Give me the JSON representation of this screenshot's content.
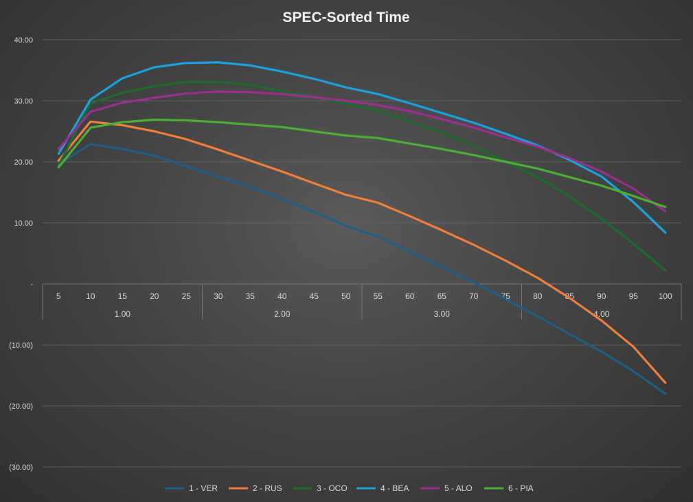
{
  "chart_data": {
    "type": "line",
    "title": "SPEC-Sorted Time",
    "x": [
      5,
      10,
      15,
      20,
      25,
      30,
      35,
      40,
      45,
      50,
      55,
      60,
      65,
      70,
      75,
      80,
      85,
      90,
      95,
      100
    ],
    "group_labels": [
      "1.00",
      "2.00",
      "3.00",
      "4.00"
    ],
    "ylim": [
      -30,
      40
    ],
    "yticks": [
      40,
      30,
      20,
      10,
      0,
      -10,
      -20,
      -30
    ],
    "ytick_labels": [
      "40.00",
      "30.00",
      "20.00",
      "10.00",
      "-",
      "(10.00)",
      "(20.00)",
      "(30.00)"
    ],
    "grid": true,
    "legend_position": "bottom",
    "series": [
      {
        "name": "1 - VER",
        "color": "#1f5f85",
        "values": [
          19.6,
          22.9,
          22.1,
          21.0,
          19.3,
          17.6,
          15.9,
          13.9,
          11.8,
          9.5,
          7.8,
          5.3,
          2.8,
          0.3,
          -2.5,
          -5.3,
          -8.2,
          -11.1,
          -14.3,
          -18.0
        ]
      },
      {
        "name": "2 - RUS",
        "color": "#f07f3c",
        "values": [
          20.2,
          26.6,
          26.0,
          25.0,
          23.7,
          22.0,
          20.2,
          18.4,
          16.5,
          14.6,
          13.3,
          11.1,
          8.8,
          6.4,
          3.8,
          1.0,
          -2.3,
          -6.0,
          -10.3,
          -16.2
        ]
      },
      {
        "name": "3 - OCO",
        "color": "#1e6b2e",
        "values": [
          19.4,
          29.6,
          31.3,
          32.4,
          33.1,
          33.1,
          32.6,
          31.6,
          30.6,
          29.5,
          28.4,
          26.6,
          24.8,
          22.6,
          20.0,
          17.5,
          14.3,
          10.7,
          6.6,
          2.2
        ]
      },
      {
        "name": "4 - BEA",
        "color": "#1ba1dc",
        "values": [
          21.3,
          30.2,
          33.7,
          35.5,
          36.2,
          36.3,
          35.8,
          34.8,
          33.6,
          32.2,
          31.1,
          29.6,
          28.0,
          26.4,
          24.6,
          22.7,
          20.3,
          17.6,
          13.4,
          8.4
        ]
      },
      {
        "name": "5 - ALO",
        "color": "#9b2f8f",
        "values": [
          22.1,
          28.2,
          29.7,
          30.5,
          31.2,
          31.5,
          31.4,
          31.1,
          30.6,
          30.0,
          29.3,
          28.3,
          27.0,
          25.6,
          24.0,
          22.5,
          20.6,
          18.4,
          15.6,
          11.9
        ]
      },
      {
        "name": "6 - PIA",
        "color": "#4caf35",
        "values": [
          19.1,
          25.6,
          26.5,
          26.9,
          26.8,
          26.5,
          26.1,
          25.7,
          25.0,
          24.3,
          23.9,
          23.0,
          22.1,
          21.1,
          20.0,
          18.9,
          17.5,
          16.1,
          14.4,
          12.6
        ]
      }
    ]
  }
}
